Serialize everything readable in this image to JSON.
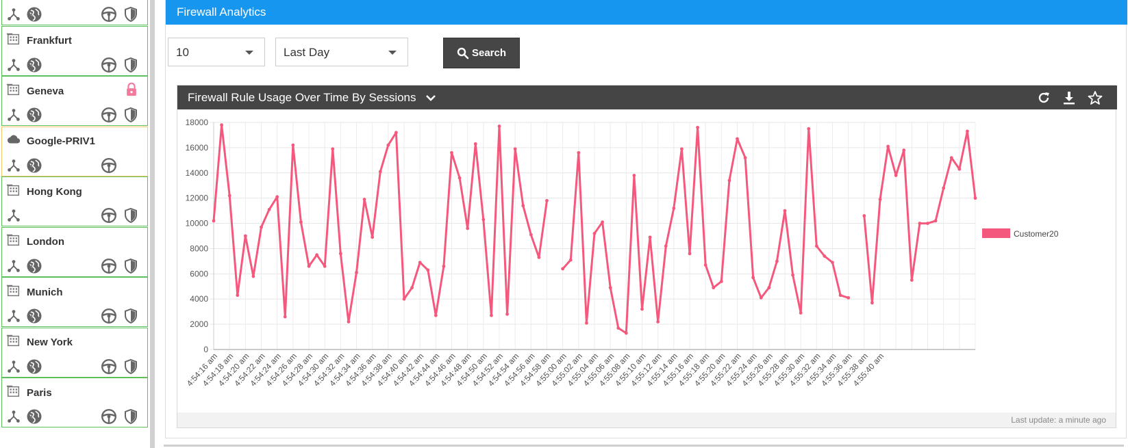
{
  "sidebar": {
    "sites": [
      {
        "name": "",
        "type": "building",
        "border": "#5bbf5b",
        "icons": [
          "topology",
          "globe",
          "steering",
          "shield"
        ],
        "partial": true
      },
      {
        "name": "Frankfurt",
        "type": "building",
        "icons": [
          "topology",
          "globe",
          "steering",
          "shield"
        ]
      },
      {
        "name": "Geneva",
        "type": "building",
        "locked": true,
        "icons": [
          "topology",
          "globe",
          "steering",
          "shield"
        ]
      },
      {
        "name": "Google-PRIV1",
        "type": "cloud",
        "icons": [
          "topology",
          "globe",
          "steering"
        ]
      },
      {
        "name": "Hong Kong",
        "type": "building",
        "icons": [
          "topology",
          "steering",
          "shield"
        ]
      },
      {
        "name": "London",
        "type": "building",
        "icons": [
          "topology",
          "globe",
          "steering",
          "shield"
        ]
      },
      {
        "name": "Munich",
        "type": "building",
        "icons": [
          "topology",
          "globe",
          "steering",
          "shield"
        ]
      },
      {
        "name": "New York",
        "type": "building",
        "icons": [
          "topology",
          "globe",
          "steering",
          "shield"
        ]
      },
      {
        "name": "Paris",
        "type": "building",
        "icons": [
          "topology",
          "globe",
          "steering",
          "shield"
        ]
      }
    ]
  },
  "main": {
    "title": "Firewall Analytics",
    "limit_select": {
      "value": "10"
    },
    "range_select": {
      "value": "Last Day"
    },
    "search_label": "Search",
    "widget": {
      "title": "Firewall Rule Usage Over Time By Sessions",
      "footer": "Last update: a minute ago"
    }
  },
  "colors": {
    "accent": "#1796f0",
    "series": "#f5587d",
    "dark": "#454545"
  },
  "chart_data": {
    "type": "line",
    "ylim": [
      0,
      18000
    ],
    "yticks": [
      0,
      2000,
      4000,
      6000,
      8000,
      10000,
      12000,
      14000,
      16000,
      18000
    ],
    "xtick_labels": [
      "4:54:16 am",
      "4:54:18 am",
      "4:54:20 am",
      "4:54:22 am",
      "4:54:24 am",
      "4:54:26 am",
      "4:54:28 am",
      "4:54:30 am",
      "4:54:32 am",
      "4:54:34 am",
      "4:54:36 am",
      "4:54:38 am",
      "4:54:40 am",
      "4:54:42 am",
      "4:54:44 am",
      "4:54:46 am",
      "4:54:48 am",
      "4:54:50 am",
      "4:54:52 am",
      "4:54:54 am",
      "4:54:56 am",
      "4:54:58 am",
      "4:55:00 am",
      "4:55:02 am",
      "4:55:04 am",
      "4:55:06 am",
      "4:55:08 am",
      "4:55:10 am",
      "4:55:12 am",
      "4:55:14 am",
      "4:55:16 am",
      "4:55:18 am",
      "4:55:20 am",
      "4:55:22 am",
      "4:55:24 am",
      "4:55:26 am",
      "4:55:28 am",
      "4:55:30 am",
      "4:55:32 am",
      "4:55:34 am",
      "4:55:36 am",
      "4:55:38 am",
      "4:55:40 am"
    ],
    "legend": {
      "position": "right"
    },
    "grid": true,
    "series": [
      {
        "name": "Customer20",
        "color": "#f5587d",
        "values": [
          10200,
          17800,
          12200,
          4300,
          9000,
          5800,
          9700,
          11100,
          12100,
          2600,
          16200,
          10100,
          6600,
          7500,
          6600,
          15900,
          7600,
          2200,
          6100,
          11900,
          8900,
          14100,
          16200,
          17200,
          4000,
          4900,
          6900,
          6300,
          2700,
          6600,
          15600,
          13600,
          9600,
          16300,
          10300,
          2700,
          17700,
          2800,
          15900,
          11400,
          9100,
          7300,
          11800,
          null,
          6400,
          7100,
          15600,
          2100,
          9200,
          10100,
          4900,
          1700,
          1300,
          13800,
          3200,
          8900,
          2200,
          8200,
          11200,
          15900,
          7600,
          17600,
          6700,
          4900,
          5400,
          13400,
          16700,
          15200,
          5700,
          4100,
          4900,
          7000,
          11000,
          5900,
          2900,
          17500,
          8200,
          7400,
          6900,
          4300,
          4100,
          null,
          10600,
          3700,
          11900,
          16100,
          13800,
          15800,
          5500,
          10000,
          10000,
          10200,
          12800,
          15200,
          14300,
          17300,
          12000
        ]
      }
    ]
  }
}
